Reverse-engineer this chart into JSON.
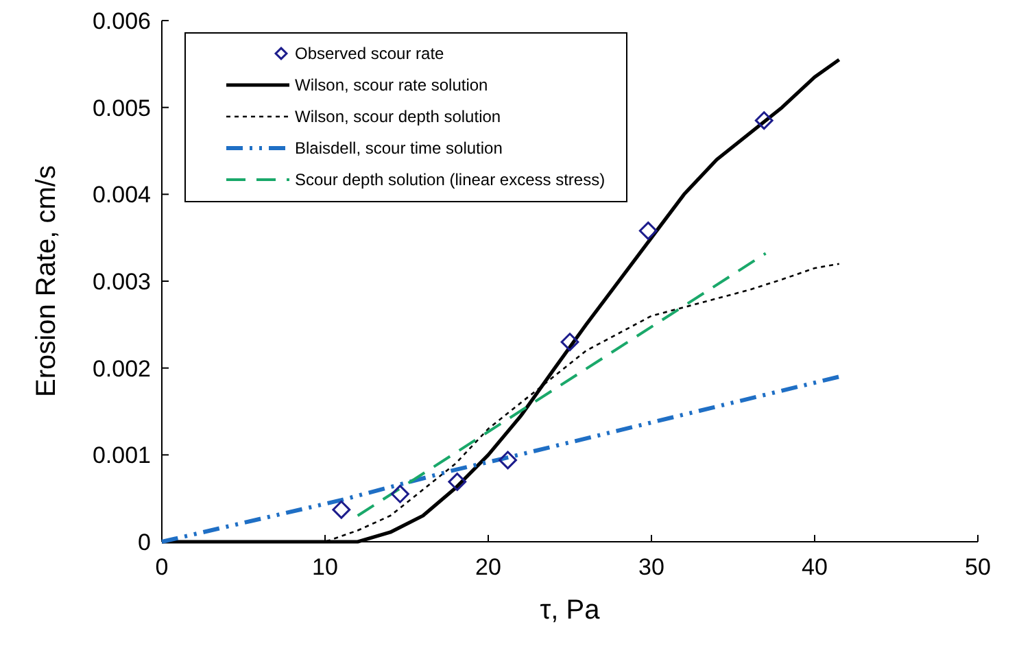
{
  "chart_data": {
    "type": "line",
    "xlabel": "τ, Pa",
    "ylabel": "Erosion Rate, cm/s",
    "xlim": [
      0,
      50
    ],
    "ylim": [
      0,
      0.006
    ],
    "xticks": [
      0,
      10,
      20,
      30,
      40,
      50
    ],
    "yticks": [
      0,
      0.001,
      0.002,
      0.003,
      0.004,
      0.005,
      0.006
    ],
    "grid": false,
    "legend": "top left",
    "series": [
      {
        "name": "Observed scour rate",
        "type": "scatter",
        "marker": "diamond",
        "color": "#1c1c8c",
        "x": [
          11,
          14.6,
          18.1,
          21.2,
          25,
          29.8,
          36.9
        ],
        "values": [
          0.00037,
          0.00055,
          0.00069,
          0.00094,
          0.0023,
          0.00358,
          0.00485
        ]
      },
      {
        "name": "Wilson, scour rate solution",
        "line_style": "solid",
        "color": "#000000",
        "x": [
          0,
          10,
          12,
          14,
          16,
          18,
          20,
          22,
          24,
          26,
          28,
          30,
          32,
          34,
          36,
          38,
          40,
          41.5
        ],
        "values": [
          0,
          0,
          0,
          0.00011,
          0.0003,
          0.00062,
          0.001,
          0.00145,
          0.00198,
          0.0025,
          0.003,
          0.0035,
          0.004,
          0.0044,
          0.0047,
          0.005,
          0.00535,
          0.00555
        ]
      },
      {
        "name": "Wilson, scour depth solution",
        "line_style": "dashed",
        "color": "#000000",
        "x": [
          0,
          8,
          10,
          12,
          14,
          16,
          18,
          20,
          22,
          24,
          26,
          28,
          30,
          32,
          34,
          36,
          38,
          40,
          41.5
        ],
        "values": [
          0,
          0,
          0,
          0.00013,
          0.0003,
          0.0006,
          0.0009,
          0.0013,
          0.0016,
          0.0019,
          0.0022,
          0.0024,
          0.0026,
          0.0027,
          0.0028,
          0.0029,
          0.00302,
          0.00315,
          0.0032
        ]
      },
      {
        "name": "Blaisdell, scour time solution",
        "line_style": "dashed",
        "color": "#1f6fc5",
        "x": [
          0,
          11,
          17.8,
          21.2,
          41.5
        ],
        "values": [
          0,
          0.00048,
          0.00082,
          0.00097,
          0.0019
        ]
      },
      {
        "name": "Scour depth solution (linear excess stress)",
        "line_style": "dashed",
        "color": "#1aa86a",
        "x": [
          12,
          37
        ],
        "values": [
          0.0003,
          0.00332
        ]
      }
    ]
  }
}
